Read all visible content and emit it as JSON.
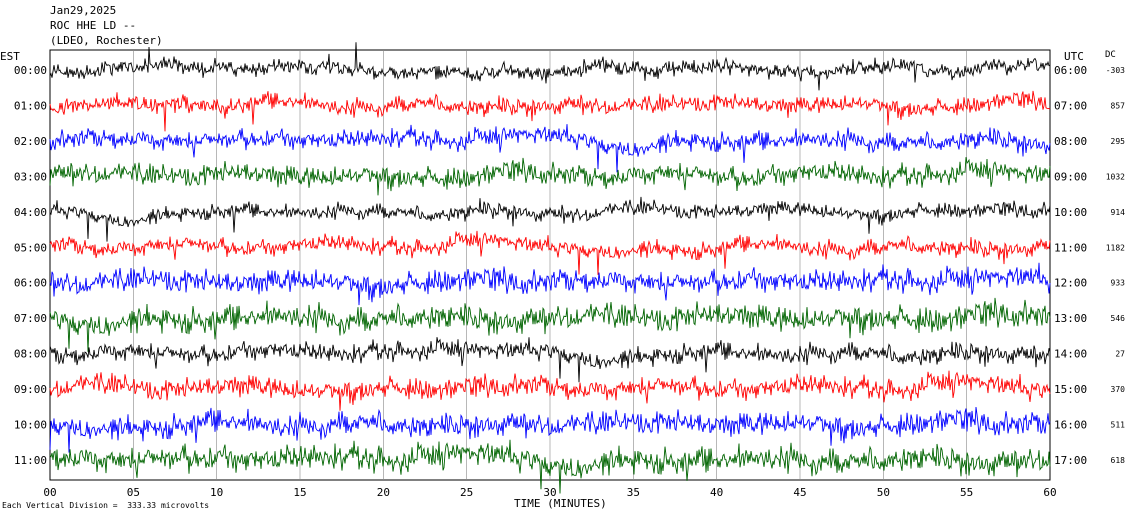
{
  "header": {
    "date": "Jan29,2025",
    "station": "ROC HHE LD --",
    "network": "(LDEO, Rochester)"
  },
  "left_axis_title": "EST",
  "right_axis_title": "UTC",
  "dc_title": "DC",
  "x_axis_label": "TIME (MINUTES)",
  "footnote": "Each Vertical Division =  333.33 microvolts",
  "colors": {
    "trace_cycle": [
      "#000000",
      "#ff0000",
      "#0000ff",
      "#006400"
    ],
    "grid": "#888888"
  },
  "chart_data": {
    "type": "line",
    "xlabel": "TIME (MINUTES)",
    "xlim": [
      0,
      60
    ],
    "x_ticks": [
      "00",
      "05",
      "10",
      "15",
      "20",
      "25",
      "30",
      "35",
      "40",
      "45",
      "50",
      "55",
      "60"
    ],
    "rows": [
      {
        "est": "00:00",
        "utc": "06:00",
        "dc": "-303",
        "color": "#000000"
      },
      {
        "est": "01:00",
        "utc": "07:00",
        "dc": "857",
        "color": "#ff0000"
      },
      {
        "est": "02:00",
        "utc": "08:00",
        "dc": "295",
        "color": "#0000ff"
      },
      {
        "est": "03:00",
        "utc": "09:00",
        "dc": "1032",
        "color": "#006400"
      },
      {
        "est": "04:00",
        "utc": "10:00",
        "dc": "914",
        "color": "#000000"
      },
      {
        "est": "05:00",
        "utc": "11:00",
        "dc": "1182",
        "color": "#ff0000"
      },
      {
        "est": "06:00",
        "utc": "12:00",
        "dc": "933",
        "color": "#0000ff"
      },
      {
        "est": "07:00",
        "utc": "13:00",
        "dc": "546",
        "color": "#006400"
      },
      {
        "est": "08:00",
        "utc": "14:00",
        "dc": "27",
        "color": "#000000"
      },
      {
        "est": "09:00",
        "utc": "15:00",
        "dc": "370",
        "color": "#ff0000"
      },
      {
        "est": "10:00",
        "utc": "16:00",
        "dc": "511",
        "color": "#0000ff"
      },
      {
        "est": "11:00",
        "utc": "17:00",
        "dc": "618",
        "color": "#006400"
      }
    ]
  }
}
